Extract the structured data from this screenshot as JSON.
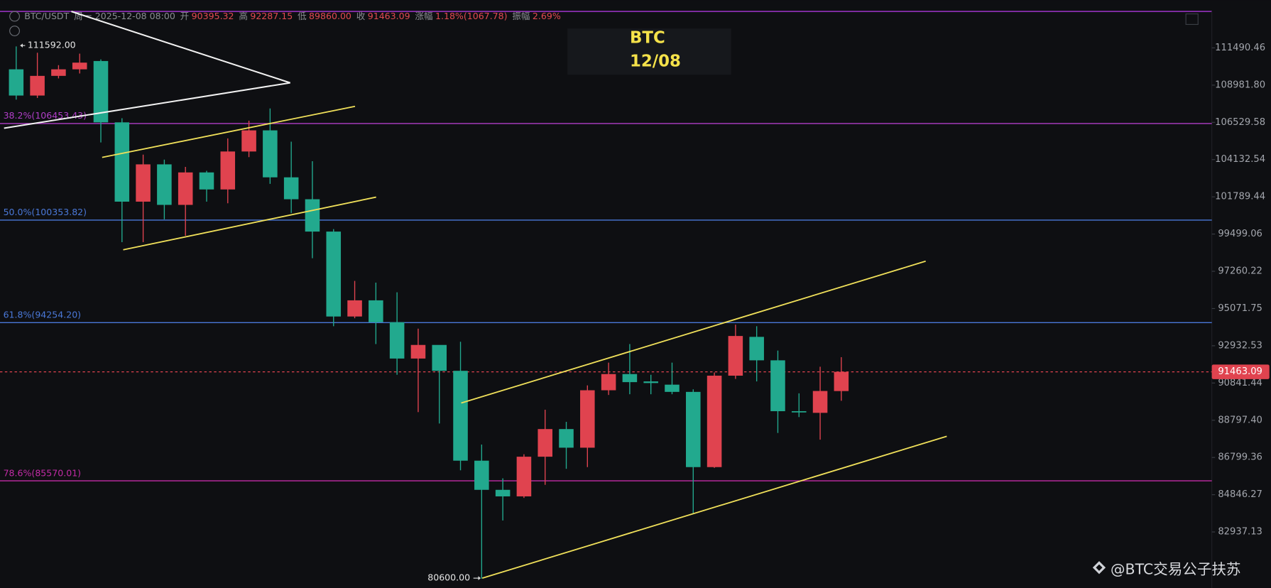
{
  "chart_data": {
    "type": "candlestick",
    "log_scale": true,
    "up_color": "#e0434f",
    "down_color": "#22a98e",
    "open": [
      110040,
      108290,
      109600,
      110040,
      110600,
      106530,
      101490,
      103830,
      101290,
      103320,
      102250,
      104650,
      106010,
      103010,
      101640,
      99650,
      94610,
      95550,
      94280,
      92210,
      92980,
      91520,
      86630,
      85100,
      84760,
      86840,
      88320,
      87320,
      90440,
      91340,
      90930,
      90750,
      90350,
      86290,
      91250,
      93440,
      92110,
      89290,
      89200,
      90395.32
    ],
    "high": [
      111592,
      111160,
      110320,
      111100,
      110710,
      106800,
      104450,
      104130,
      103670,
      103420,
      105490,
      106640,
      107440,
      105280,
      104030,
      99800,
      96690,
      96590,
      96020,
      93910,
      92930,
      93160,
      87490,
      85700,
      86970,
      89370,
      88710,
      90710,
      91980,
      93030,
      91300,
      91980,
      90490,
      91430,
      94140,
      94050,
      92660,
      90270,
      91750,
      92287.15
    ],
    "low": [
      108020,
      108130,
      109430,
      109760,
      105230,
      99010,
      99010,
      100400,
      99400,
      101490,
      101390,
      104290,
      102600,
      100790,
      98040,
      94050,
      94510,
      93030,
      91300,
      89240,
      88620,
      86120,
      80600,
      83520,
      84680,
      85360,
      86200,
      86290,
      90180,
      90220,
      90220,
      90220,
      83890,
      86250,
      91070,
      90930,
      88110,
      88970,
      87750,
      89860
    ],
    "close": [
      108290,
      109600,
      110040,
      110490,
      106530,
      101490,
      103830,
      101290,
      103320,
      102250,
      104650,
      106010,
      103010,
      101640,
      99650,
      94610,
      95550,
      94280,
      92210,
      92980,
      91520,
      86630,
      85100,
      84760,
      86840,
      88320,
      87320,
      90440,
      91340,
      90890,
      90840,
      90350,
      86290,
      91250,
      93490,
      92110,
      89290,
      89240,
      90400,
      91463.09
    ],
    "ylim": [
      80150,
      114000
    ],
    "yticks": [
      111490.46,
      {
        "value": 108981.8,
        "label": "108981.80"
      },
      106529.58,
      104132.54,
      101789.44,
      99499.06,
      97260.22,
      95071.75,
      92932.53,
      90841.44,
      {
        "value": 88797.4,
        "label": "88797.40"
      },
      86799.36,
      84846.27,
      82937.13
    ],
    "levels": [
      {
        "label": "38.2%(106453.43)",
        "value": 106453.43,
        "color": "#b13ec8"
      },
      {
        "label": "50.0%(100353.82)",
        "value": 100353.82,
        "color": "#4a78d8"
      },
      {
        "label": "61.8%(94254.20)",
        "value": 94254.2,
        "color": "#4a78d8"
      },
      {
        "label": "78.6%(85570.01)",
        "value": 85570.01,
        "color": "#c22ba6"
      }
    ],
    "header": {
      "symbol": "BTC/USDT",
      "weekday": "周一",
      "date": "2025-12-08 08:00",
      "items": [
        {
          "label": "开",
          "text": "90395.32"
        },
        {
          "label": "高",
          "text": "92287.15"
        },
        {
          "label": "低",
          "text": "89860.00"
        },
        {
          "label": "收",
          "text": "91463.09"
        },
        {
          "label": "涨幅",
          "text": "1.18%(1067.78)"
        },
        {
          "label": "振幅",
          "text": "2.69%"
        }
      ]
    },
    "annotation": {
      "line1": "BTC",
      "line2": "12/08"
    },
    "extremes": {
      "max_label": "111592.00",
      "min_label": "80600.00"
    },
    "watermark": "@BTC交易公子扶苏"
  }
}
